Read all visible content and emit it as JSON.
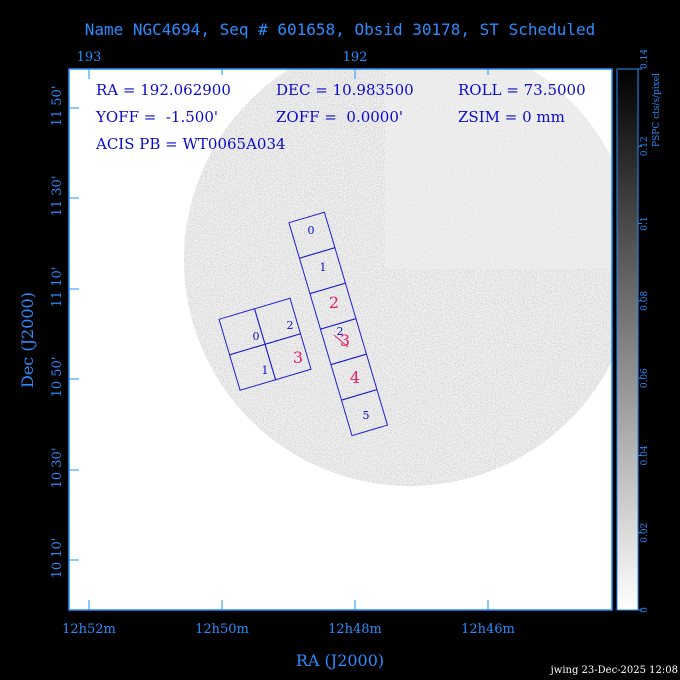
{
  "title": "Name NGC4694, Seq # 601658, Obsid 30178, ST Scheduled",
  "info": {
    "ra": "RA = 192.062900",
    "dec": "DEC = 10.983500",
    "roll": "ROLL = 73.5000",
    "yoff": "YOFF =  -1.500'",
    "zoff": "ZOFF =  0.0000'",
    "zsim": "ZSIM = 0 mm",
    "acis": "ACIS PB = WT0065A034"
  },
  "footer": "jwing 23-Dec-2025 12:08",
  "colors": {
    "axis": "#1f8fff",
    "text": "#0a0ad0",
    "chip": "#2020d0",
    "ccd_label": "#e0206a",
    "frame": "#1f8fff"
  },
  "chart_data": {
    "type": "heatmap",
    "xlabel": "RA (J2000)",
    "ylabel": "Dec (J2000)",
    "x_ticks": [
      "12h52m",
      "12h50m",
      "12h48m",
      "12h46m"
    ],
    "top_ticks": [
      "193",
      "192"
    ],
    "y_ticks": [
      "11 50'",
      "11 30'",
      "11 10'",
      "10 50'",
      "10 30'",
      "10 10'"
    ],
    "colorbar": {
      "label": "PSPC cts/s/pixel",
      "ticks": [
        "0",
        "0.02",
        "0.04",
        "0.06",
        "0.08",
        "0.1",
        "0.12",
        "0.14"
      ],
      "range": [
        0,
        0.14
      ],
      "colormap": "gray-inverted"
    },
    "ccd_labels": [
      "0",
      "1",
      "2",
      "3",
      "0",
      "1",
      "2",
      "3",
      "4",
      "5"
    ],
    "region_labels": [
      "2",
      "3",
      "4"
    ]
  }
}
